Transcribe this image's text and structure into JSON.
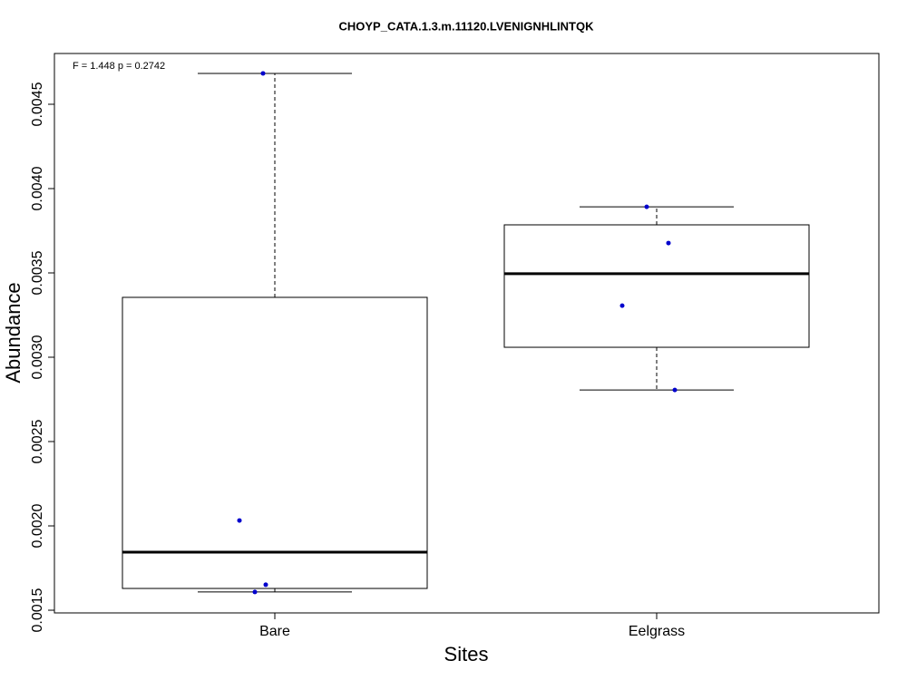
{
  "chart_data": {
    "type": "boxplot",
    "title": "CHOYP_CATA.1.3.m.11120.LVENIGNHLINTQK",
    "annotation": "F = 1.448 p = 0.2742",
    "x_label": "Sites",
    "y_label": "Abundance",
    "categories": [
      "Bare",
      "Eelgrass"
    ],
    "boxes": [
      {
        "whisker_low": 0.001608,
        "q1": 0.001629,
        "median": 0.001844,
        "q3": 0.003355,
        "whisker_high": 0.004683
      },
      {
        "whisker_low": 0.002806,
        "q1": 0.003059,
        "median": 0.003495,
        "q3": 0.003785,
        "whisker_high": 0.003892
      }
    ],
    "points": [
      [
        0.004683,
        0.002032,
        0.001651,
        0.001608
      ],
      [
        0.003892,
        0.003677,
        0.003306,
        0.002806
      ]
    ],
    "point_color": "#0000cd",
    "ylim": [
      0.001484,
      0.004801
    ],
    "yticks": [
      0.0015,
      {
        "value": 0.002,
        "label": "0.0020"
      },
      0.0025,
      {
        "value": 0.003,
        "label": "0.0030"
      },
      0.0035,
      {
        "value": 0.004,
        "label": "0.0040"
      },
      0.0045
    ]
  }
}
